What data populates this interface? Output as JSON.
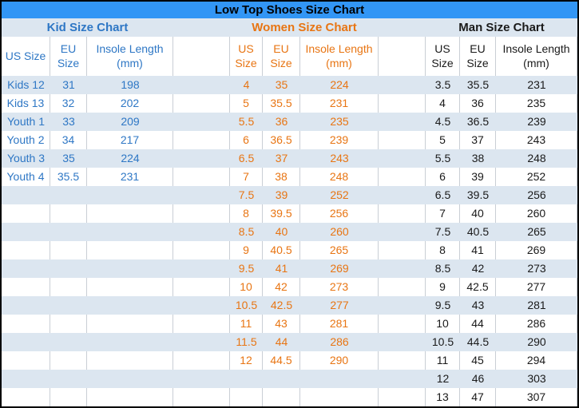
{
  "title": "Low Top Shoes Size Chart",
  "colors": {
    "title_bg": "#3296F5",
    "band_bg": "#DCE6F0",
    "row_white": "#FFFFFF",
    "grid_line": "#C9CED5",
    "kid_text": "#2E77C5",
    "women_text": "#E87513",
    "man_text": "#1A1A1A",
    "border": "#000000"
  },
  "row_count": 18,
  "sections": [
    {
      "id": "kid",
      "title": "Kid Size Chart",
      "headers": [
        "US Size",
        "EU Size",
        "Insole Length (mm)"
      ],
      "rows": [
        [
          "Kids 12",
          "31",
          "198"
        ],
        [
          "Kids 13",
          "32",
          "202"
        ],
        [
          "Youth 1",
          "33",
          "209"
        ],
        [
          "Youth 2",
          "34",
          "217"
        ],
        [
          "Youth 3",
          "35",
          "224"
        ],
        [
          "Youth 4",
          "35.5",
          "231"
        ]
      ]
    },
    {
      "id": "women",
      "title": "Women Size Chart",
      "headers": [
        "US Size",
        "EU Size",
        "Insole Length (mm)"
      ],
      "rows": [
        [
          "4",
          "35",
          "224"
        ],
        [
          "5",
          "35.5",
          "231"
        ],
        [
          "5.5",
          "36",
          "235"
        ],
        [
          "6",
          "36.5",
          "239"
        ],
        [
          "6.5",
          "37",
          "243"
        ],
        [
          "7",
          "38",
          "248"
        ],
        [
          "7.5",
          "39",
          "252"
        ],
        [
          "8",
          "39.5",
          "256"
        ],
        [
          "8.5",
          "40",
          "260"
        ],
        [
          "9",
          "40.5",
          "265"
        ],
        [
          "9.5",
          "41",
          "269"
        ],
        [
          "10",
          "42",
          "273"
        ],
        [
          "10.5",
          "42.5",
          "277"
        ],
        [
          "11",
          "43",
          "281"
        ],
        [
          "11.5",
          "44",
          "286"
        ],
        [
          "12",
          "44.5",
          "290"
        ]
      ]
    },
    {
      "id": "man",
      "title": "Man Size Chart",
      "headers": [
        "US Size",
        "EU Size",
        "Insole Length (mm)"
      ],
      "rows": [
        [
          "3.5",
          "35.5",
          "231"
        ],
        [
          "4",
          "36",
          "235"
        ],
        [
          "4.5",
          "36.5",
          "239"
        ],
        [
          "5",
          "37",
          "243"
        ],
        [
          "5.5",
          "38",
          "248"
        ],
        [
          "6",
          "39",
          "252"
        ],
        [
          "6.5",
          "39.5",
          "256"
        ],
        [
          "7",
          "40",
          "260"
        ],
        [
          "7.5",
          "40.5",
          "265"
        ],
        [
          "8",
          "41",
          "269"
        ],
        [
          "8.5",
          "42",
          "273"
        ],
        [
          "9",
          "42.5",
          "277"
        ],
        [
          "9.5",
          "43",
          "281"
        ],
        [
          "10",
          "44",
          "286"
        ],
        [
          "10.5",
          "44.5",
          "290"
        ],
        [
          "11",
          "45",
          "294"
        ],
        [
          "12",
          "46",
          "303"
        ],
        [
          "13",
          "47",
          "307"
        ]
      ]
    }
  ],
  "chart_data": {
    "type": "table",
    "title": "Low Top Shoes Size Chart",
    "tables": [
      {
        "name": "Kid Size Chart",
        "columns": [
          "US Size",
          "EU Size",
          "Insole Length (mm)"
        ],
        "rows": [
          [
            "Kids 12",
            31,
            198
          ],
          [
            "Kids 13",
            32,
            202
          ],
          [
            "Youth 1",
            33,
            209
          ],
          [
            "Youth 2",
            34,
            217
          ],
          [
            "Youth 3",
            35,
            224
          ],
          [
            "Youth 4",
            35.5,
            231
          ]
        ]
      },
      {
        "name": "Women Size Chart",
        "columns": [
          "US Size",
          "EU Size",
          "Insole Length (mm)"
        ],
        "rows": [
          [
            4,
            35,
            224
          ],
          [
            5,
            35.5,
            231
          ],
          [
            5.5,
            36,
            235
          ],
          [
            6,
            36.5,
            239
          ],
          [
            6.5,
            37,
            243
          ],
          [
            7,
            38,
            248
          ],
          [
            7.5,
            39,
            252
          ],
          [
            8,
            39.5,
            256
          ],
          [
            8.5,
            40,
            260
          ],
          [
            9,
            40.5,
            265
          ],
          [
            9.5,
            41,
            269
          ],
          [
            10,
            42,
            273
          ],
          [
            10.5,
            42.5,
            277
          ],
          [
            11,
            43,
            281
          ],
          [
            11.5,
            44,
            286
          ],
          [
            12,
            44.5,
            290
          ]
        ]
      },
      {
        "name": "Man Size Chart",
        "columns": [
          "US Size",
          "EU Size",
          "Insole Length (mm)"
        ],
        "rows": [
          [
            3.5,
            35.5,
            231
          ],
          [
            4,
            36,
            235
          ],
          [
            4.5,
            36.5,
            239
          ],
          [
            5,
            37,
            243
          ],
          [
            5.5,
            38,
            248
          ],
          [
            6,
            39,
            252
          ],
          [
            6.5,
            39.5,
            256
          ],
          [
            7,
            40,
            260
          ],
          [
            7.5,
            40.5,
            265
          ],
          [
            8,
            41,
            269
          ],
          [
            8.5,
            42,
            273
          ],
          [
            9,
            42.5,
            277
          ],
          [
            9.5,
            43,
            281
          ],
          [
            10,
            44,
            286
          ],
          [
            10.5,
            44.5,
            290
          ],
          [
            11,
            45,
            294
          ],
          [
            12,
            46,
            303
          ],
          [
            13,
            47,
            307
          ]
        ]
      }
    ]
  }
}
